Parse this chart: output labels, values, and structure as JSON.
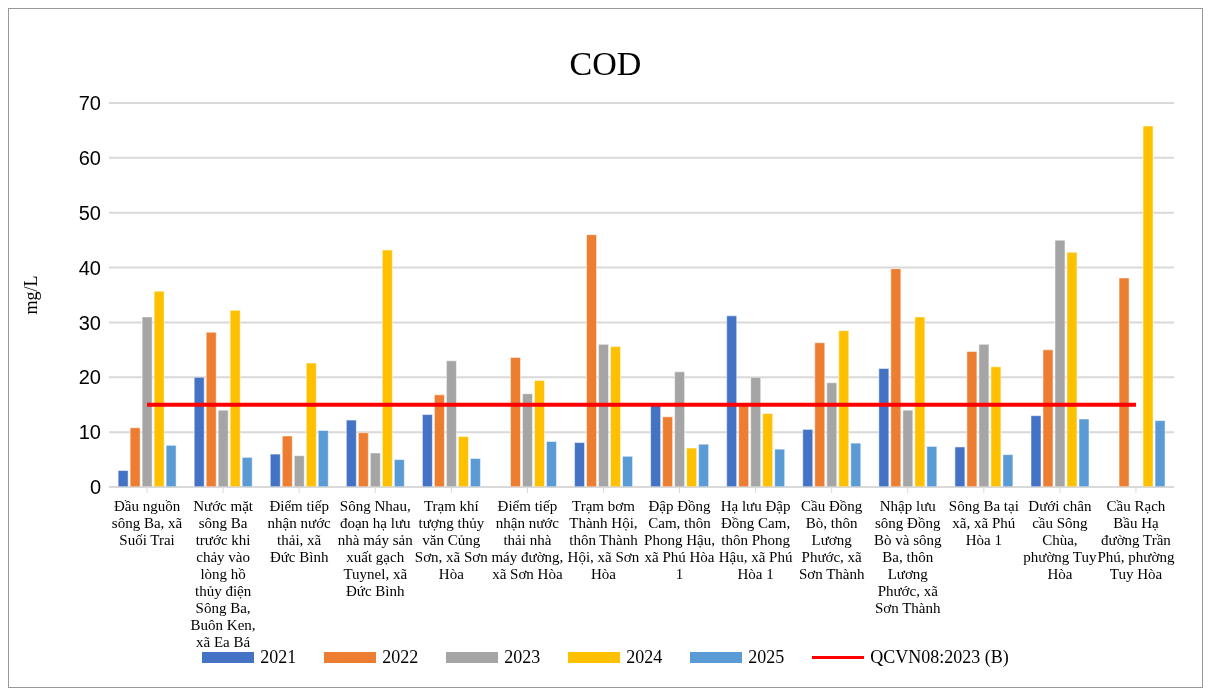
{
  "chart_data": {
    "type": "bar",
    "title": "COD",
    "ylabel": "mg/L",
    "categories": [
      "Đầu nguồn sông Ba, xã Suối Trai",
      "Nước mặt sông Ba trước khi chảy vào lòng hồ thủy điện Sông Ba, Buôn Ken, xã Ea Bá",
      "Điểm tiếp nhận nước thải, xã Đức Bình",
      "Sông Nhau, đoạn hạ lưu nhà máy sản xuất gạch Tuynel, xã Đức Bình",
      "Trạm khí tượng thủy văn Củng Sơn, xã Sơn Hòa",
      "Điểm tiếp nhận nước thải nhà máy đường, xã Sơn Hòa",
      "Trạm bơm Thành Hội, thôn Thành Hội, xã Sơn Hòa",
      "Đập Đồng Cam, thôn Phong Hậu, xã Phú Hòa 1",
      "Hạ lưu Đập Đồng Cam, thôn Phong Hậu, xã Phú Hòa 1",
      "Cầu Đồng Bò, thôn Lương Phước, xã Sơn Thành",
      "Nhập lưu sông Đồng Bò và sông Ba, thôn Lương Phước, xã Sơn Thành",
      "Sông Ba tại xã, xã Phú Hòa 1",
      "Dưới chân cầu Sông Chùa, phường Tuy Hòa",
      "Cầu Rạch Bầu Hạ đường Trần Phú, phường Tuy Hòa"
    ],
    "series": [
      {
        "name": "2021",
        "color": "#4472c4",
        "values": [
          3,
          20,
          6,
          12.2,
          13.2,
          null,
          8.1,
          15,
          31.2,
          10.5,
          21.6,
          7.3,
          13,
          null
        ]
      },
      {
        "name": "2022",
        "color": "#ed7d31",
        "values": [
          10.8,
          28.2,
          9.3,
          9.9,
          16.8,
          23.6,
          46,
          12.8,
          15,
          26.3,
          39.8,
          24.7,
          25,
          38.1
        ]
      },
      {
        "name": "2023",
        "color": "#a5a5a5",
        "values": [
          31,
          14,
          5.7,
          6.2,
          23,
          17,
          26,
          21,
          20,
          19,
          14,
          26,
          45,
          null
        ]
      },
      {
        "name": "2024",
        "color": "#ffc000",
        "values": [
          35.7,
          32.2,
          22.6,
          43.2,
          9.2,
          19.4,
          25.6,
          7.1,
          13.4,
          28.5,
          31,
          21.9,
          42.8,
          65.8
        ]
      },
      {
        "name": "2025",
        "color": "#5b9bd5",
        "values": [
          7.6,
          5.4,
          10.3,
          5,
          5.2,
          8.3,
          5.6,
          7.8,
          6.9,
          8,
          7.4,
          5.9,
          12.4,
          12.1
        ]
      },
      {
        "name": "QCVN08:2023 (B)",
        "type": "line",
        "color": "#ff0000",
        "values": [
          15,
          15,
          15,
          15,
          15,
          15,
          15,
          15,
          15,
          15,
          15,
          15,
          15,
          15
        ]
      }
    ],
    "ylim": [
      0,
      70
    ],
    "yticks": [
      0,
      10,
      20,
      30,
      40,
      50,
      60,
      70
    ],
    "grid": "y",
    "legend": "bottom"
  }
}
